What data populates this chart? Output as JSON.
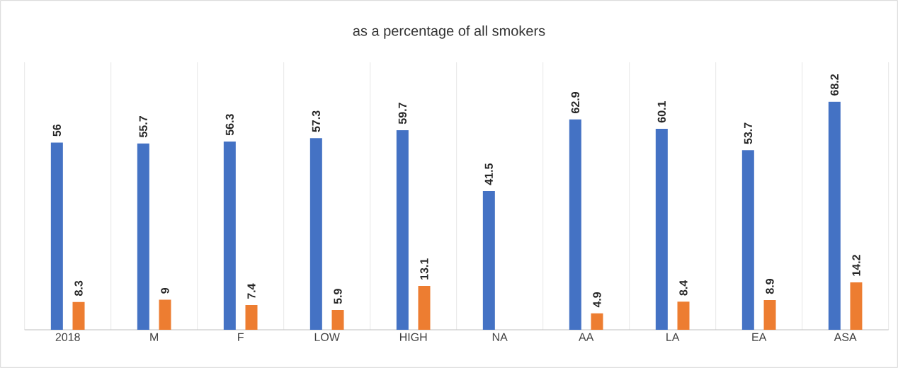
{
  "chart_data": {
    "type": "bar",
    "title": "as a percentage of all smokers",
    "categories": [
      "2018",
      "M",
      "F",
      "LOW",
      "HIGH",
      "NA",
      "AA",
      "LA",
      "EA",
      "ASA"
    ],
    "series": [
      {
        "color": "#4472c4",
        "values": [
          56,
          55.7,
          56.3,
          57.3,
          59.7,
          41.5,
          62.9,
          60.1,
          53.7,
          68.2
        ]
      },
      {
        "color": "#ed7d31",
        "values": [
          8.3,
          9,
          7.4,
          5.9,
          13.1,
          null,
          4.9,
          8.4,
          8.9,
          14.2
        ]
      }
    ],
    "ylim": [
      0,
      80
    ],
    "data_labels": true,
    "grid": "x",
    "tick_labels": "x"
  }
}
